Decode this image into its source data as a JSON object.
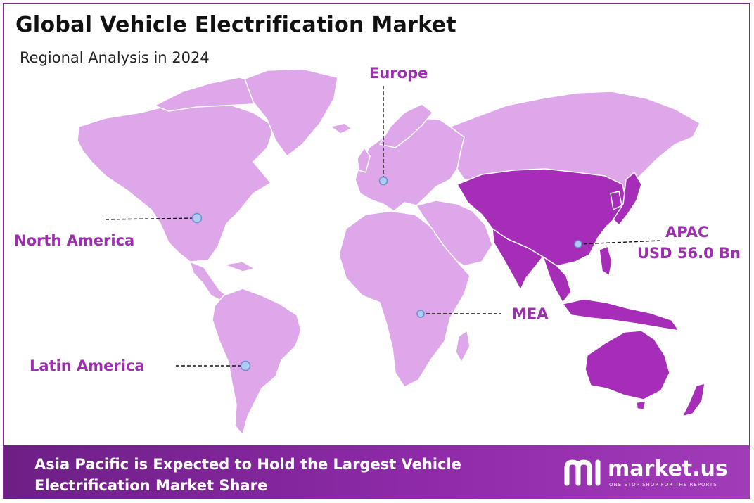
{
  "header": {
    "title": "Global Vehicle Electrification Market",
    "subtitle": "Regional Analysis in 2024"
  },
  "regions": {
    "europe": {
      "label": "Europe"
    },
    "north_america": {
      "label": "North America"
    },
    "apac": {
      "label": "APAC",
      "value": "USD 56.0 Bn"
    },
    "mea": {
      "label": "MEA"
    },
    "latin_america": {
      "label": "Latin America"
    }
  },
  "footer": {
    "line1": "Asia Pacific is Expected to Hold the Largest Vehicle",
    "line2": "Electrification Market Share"
  },
  "brand": {
    "name": "market.us",
    "tagline": "ONE STOP SHOP FOR THE REPORTS"
  },
  "colors": {
    "land_light": "#dda7ea",
    "land_highlight": "#a52db8",
    "label": "#9b2fae",
    "footer_bg": "#7b2a8e"
  }
}
